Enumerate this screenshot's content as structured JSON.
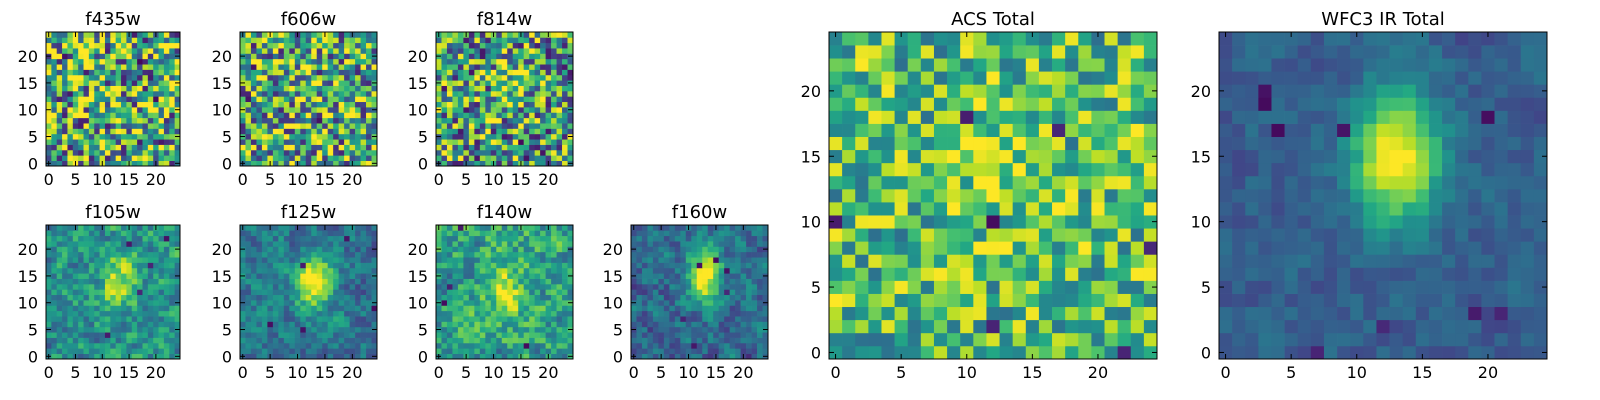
{
  "chart_data": [
    {
      "type": "heatmap",
      "title": "f435w",
      "grid_size": 25,
      "xticks": [
        "0",
        "5",
        "10",
        "15",
        "20"
      ],
      "yticks": [
        "0",
        "5",
        "10",
        "15",
        "20"
      ],
      "xlim": [
        0,
        25
      ],
      "ylim": [
        0,
        25
      ],
      "pattern": "noise",
      "seed": 11,
      "peak": [
        12,
        15
      ],
      "peak_strength": 0.05,
      "noise": 0.55,
      "base": 0.62,
      "dark_spots": 8
    },
    {
      "type": "heatmap",
      "title": "f606w",
      "grid_size": 25,
      "xticks": [
        "0",
        "5",
        "10",
        "15",
        "20"
      ],
      "yticks": [
        "0",
        "5",
        "10",
        "15",
        "20"
      ],
      "xlim": [
        0,
        25
      ],
      "ylim": [
        0,
        25
      ],
      "pattern": "noise",
      "seed": 23,
      "peak": [
        12,
        15
      ],
      "peak_strength": 0.12,
      "noise": 0.5,
      "base": 0.6,
      "dark_spots": 6
    },
    {
      "type": "heatmap",
      "title": "f814w",
      "grid_size": 25,
      "xticks": [
        "0",
        "5",
        "10",
        "15",
        "20"
      ],
      "yticks": [
        "0",
        "5",
        "10",
        "15",
        "20"
      ],
      "xlim": [
        0,
        25
      ],
      "ylim": [
        0,
        25
      ],
      "pattern": "noise",
      "seed": 37,
      "peak": [
        13,
        15
      ],
      "peak_strength": 0.3,
      "noise": 0.5,
      "base": 0.55,
      "dark_spots": 8
    },
    {
      "type": "heatmap",
      "title": "f105w",
      "grid_size": 25,
      "xticks": [
        "0",
        "5",
        "10",
        "15",
        "20"
      ],
      "yticks": [
        "0",
        "5",
        "10",
        "15",
        "20"
      ],
      "xlim": [
        0,
        25
      ],
      "ylim": [
        0,
        25
      ],
      "pattern": "blob",
      "seed": 41,
      "peak": [
        13,
        14
      ],
      "peak_strength": 0.45,
      "noise": 0.35,
      "base": 0.5,
      "dark_spots": 5
    },
    {
      "type": "heatmap",
      "title": "f125w",
      "grid_size": 25,
      "xticks": [
        "0",
        "5",
        "10",
        "15",
        "20"
      ],
      "yticks": [
        "0",
        "5",
        "10",
        "15",
        "20"
      ],
      "xlim": [
        0,
        25
      ],
      "ylim": [
        0,
        25
      ],
      "pattern": "blob",
      "seed": 53,
      "peak": [
        13,
        14
      ],
      "peak_strength": 0.65,
      "noise": 0.28,
      "base": 0.4,
      "dark_spots": 5
    },
    {
      "type": "heatmap",
      "title": "f140w",
      "grid_size": 25,
      "xticks": [
        "0",
        "5",
        "10",
        "15",
        "20"
      ],
      "yticks": [
        "0",
        "5",
        "10",
        "15",
        "20"
      ],
      "xlim": [
        0,
        25
      ],
      "ylim": [
        0,
        25
      ],
      "pattern": "blob",
      "seed": 67,
      "peak": [
        12,
        12
      ],
      "peak_strength": 0.35,
      "noise": 0.38,
      "base": 0.58,
      "dark_spots": 4
    },
    {
      "type": "heatmap",
      "title": "f160w",
      "grid_size": 25,
      "xticks": [
        "0",
        "5",
        "10",
        "15",
        "20"
      ],
      "yticks": [
        "0",
        "5",
        "10",
        "15",
        "20"
      ],
      "xlim": [
        0,
        25
      ],
      "ylim": [
        0,
        25
      ],
      "pattern": "blob",
      "seed": 79,
      "peak": [
        13,
        15
      ],
      "peak_strength": 0.7,
      "noise": 0.28,
      "base": 0.35,
      "dark_spots": 6
    },
    {
      "type": "heatmap",
      "title": "ACS Total",
      "grid_size": 25,
      "xticks": [
        "0",
        "5",
        "10",
        "15",
        "20"
      ],
      "yticks": [
        "0",
        "5",
        "10",
        "15",
        "20"
      ],
      "xlim": [
        0,
        25
      ],
      "ylim": [
        0,
        25
      ],
      "pattern": "noise",
      "seed": 97,
      "peak": [
        12,
        15
      ],
      "peak_strength": 0.18,
      "noise": 0.32,
      "base": 0.68,
      "dark_spots": 7
    },
    {
      "type": "heatmap",
      "title": "WFC3 IR Total",
      "grid_size": 25,
      "xticks": [
        "0",
        "5",
        "10",
        "15",
        "20"
      ],
      "yticks": [
        "0",
        "5",
        "10",
        "15",
        "20"
      ],
      "xlim": [
        0,
        25
      ],
      "ylim": [
        0,
        25
      ],
      "pattern": "blob",
      "seed": 113,
      "peak": [
        13,
        15
      ],
      "peak_strength": 0.75,
      "noise": 0.14,
      "base": 0.3,
      "dark_spots": 9
    }
  ],
  "colormap": "viridis",
  "colors": {
    "viridis": [
      "#440154",
      "#482475",
      "#414487",
      "#355f8d",
      "#2a788e",
      "#21908d",
      "#22a884",
      "#42be71",
      "#7ad151",
      "#bddf26",
      "#fde725"
    ]
  }
}
